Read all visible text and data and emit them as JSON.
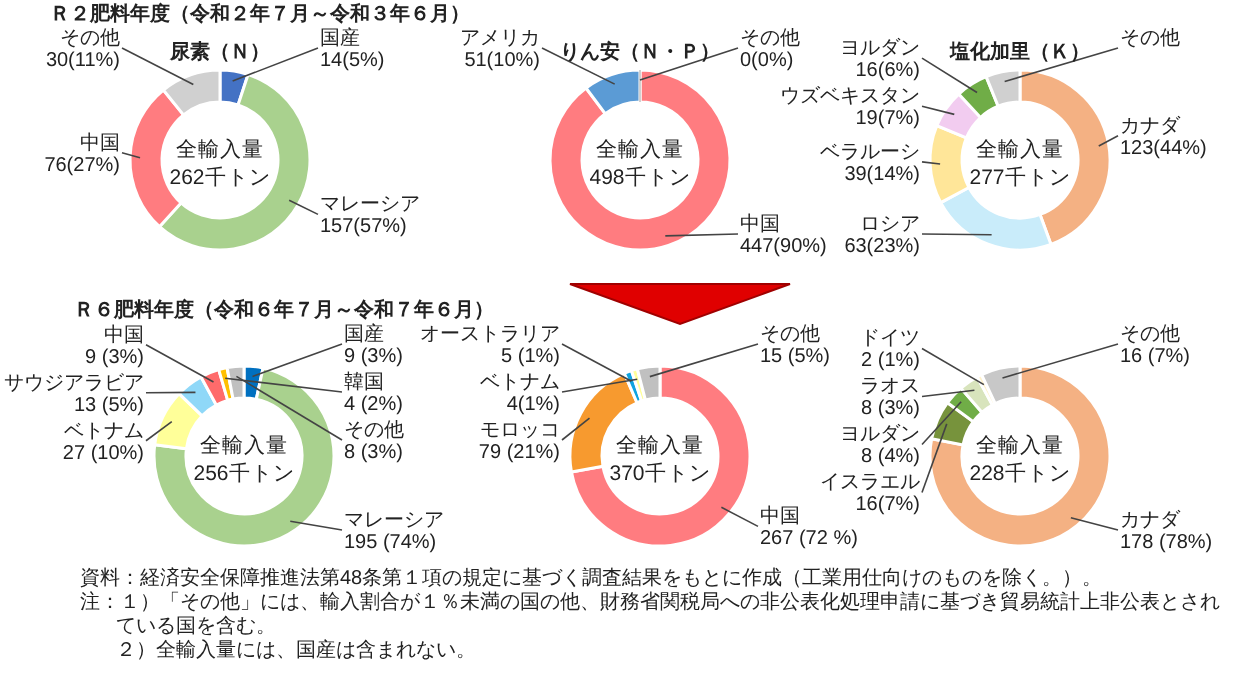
{
  "chart_data": [
    {
      "type": "donut",
      "title": "Ｒ２肥料年度（令和２年７月～令和３年６月）",
      "subtitle": "尿素（Ｎ）",
      "categories": [
        "国産",
        "マレーシア",
        "中国",
        "その他"
      ],
      "values": [
        14,
        157,
        76,
        30
      ],
      "colors": [
        "#4472c4",
        "#a9d18e",
        "#ff7c80",
        "#d0d0d0"
      ],
      "value_labels": [
        "14(5%)",
        "157(57%)",
        "76(27%)",
        "30(11%)"
      ],
      "annotations": [
        "全輸入量",
        "262千トン"
      ]
    },
    {
      "type": "donut",
      "subtitle": "りん安（Ｎ・Ｐ）",
      "categories": [
        "中国",
        "アメリカ",
        "その他"
      ],
      "values": [
        447,
        51,
        0
      ],
      "colors": [
        "#ff7c80",
        "#5b9bd5",
        "#d0d0d0"
      ],
      "value_labels": [
        "447(90%)",
        "51(10%)",
        "0(0%)"
      ],
      "annotations": [
        "全輸入量",
        "498千トン"
      ]
    },
    {
      "type": "donut",
      "subtitle": "塩化加里（Ｋ）",
      "categories": [
        "カナダ",
        "ロシア",
        "ベラルーシ",
        "ウズベキスタン",
        "ヨルダン",
        "その他"
      ],
      "values": [
        123,
        63,
        39,
        19,
        16,
        17
      ],
      "colors": [
        "#f4b183",
        "#c9ecfa",
        "#ffe699",
        "#f2ccf0",
        "#70ad47",
        "#d0d0d0"
      ],
      "value_labels": [
        "123(44%)",
        "63(23%)",
        "39(14%)",
        "19(7%)",
        "16(6%)",
        null
      ],
      "annotations": [
        "全輸入量",
        "277千トン"
      ]
    },
    {
      "type": "donut",
      "title": "Ｒ６肥料年度（令和６年７月～令和７年６月）",
      "categories": [
        "国産",
        "マレーシア",
        "ベトナム",
        "サウジアラビア",
        "中国",
        "韓国",
        "その他"
      ],
      "values": [
        9,
        195,
        27,
        13,
        9,
        4,
        8
      ],
      "colors": [
        "#0070c0",
        "#a9d18e",
        "#ffff99",
        "#8fd8f8",
        "#ff6b6b",
        "#ffc000",
        "#c0c0c0"
      ],
      "value_labels": [
        "9 (3%)",
        "195 (74%)",
        "27 (10%)",
        "13 (5%)",
        "9 (3%)",
        "4 (2%)",
        "8 (3%)"
      ],
      "annotations": [
        "全輸入量",
        "256千トン",
        "資料：経済安全保障推進法第48条第１項の規定に基づく調査結果をもとに作成（工業用仕向けのものを除く。）。",
        "注：１）「その他」には、輸入割合が１％未満の国の他、財務省関税局への非公表化処理申請に基づき貿易統計上非公表とされている国を含む。",
        "２）全輸入量には、国産は含まれない。"
      ]
    },
    {
      "type": "donut",
      "categories": [
        "中国",
        "モロッコ",
        "オーストラリア",
        "ベトナム",
        "その他"
      ],
      "values": [
        267,
        79,
        5,
        4,
        15
      ],
      "colors": [
        "#ff7c80",
        "#f79a2f",
        "#0fa3e0",
        "#ffff99",
        "#c0c0c0"
      ],
      "value_labels": [
        "267 (72 %)",
        "79 (21%)",
        "5 (1%)",
        "4(1%)",
        "15 (5%)"
      ],
      "annotations": [
        "全輸入量",
        "370千トン"
      ]
    },
    {
      "type": "donut",
      "categories": [
        "カナダ",
        "イスラエル",
        "ヨルダン",
        "ラオス",
        "ドイツ",
        "その他"
      ],
      "values": [
        178,
        16,
        8,
        8,
        2,
        16
      ],
      "colors": [
        "#f4b183",
        "#77933c",
        "#70ad47",
        "#d8e4bc",
        "#fff2cc",
        "#c8c8c8"
      ],
      "value_labels": [
        "178 (78%)",
        "16(7%)",
        "8 (4%)",
        "8 (3%)",
        "2 (1%)",
        "16 (7%)"
      ],
      "annotations": [
        "全輸入量",
        "228千トン"
      ]
    }
  ]
}
